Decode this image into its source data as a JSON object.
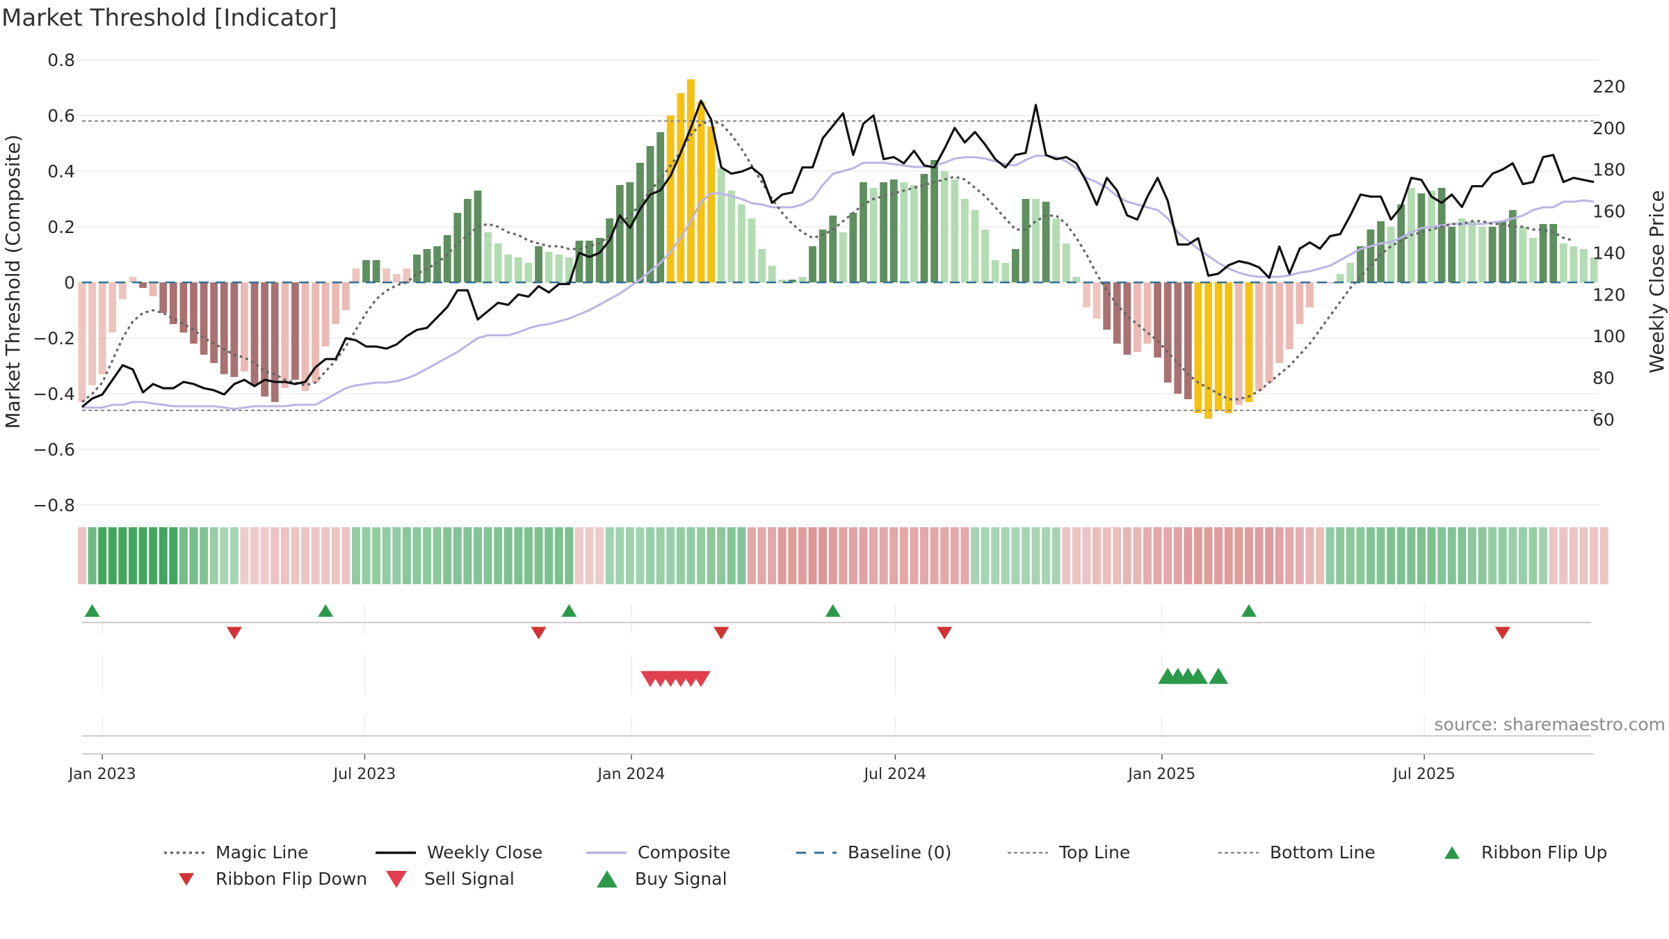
{
  "chart_data": {
    "type": "bar",
    "title": "Market Threshold [Indicator]",
    "ylabel": "Market Threshold (Composite)",
    "y2label": "Weekly Close Price",
    "ylim": [
      -0.8,
      0.8
    ],
    "y2lim": [
      56,
      222
    ],
    "yticks": [
      "0.8",
      "0.6",
      "0.4",
      "0.2",
      "0",
      "−0.2",
      "−0.4",
      "−0.6",
      "−0.8"
    ],
    "y2ticks": [
      "220",
      "200",
      "180",
      "160",
      "140",
      "120",
      "100",
      "80",
      "60"
    ],
    "x_axis": {
      "start": "2022-12-18",
      "ticks": [
        "Jan 2023",
        "Jul 2023",
        "Jan 2024",
        "Jul 2024",
        "Jan 2025",
        "Jul 2025"
      ]
    },
    "top_line": 0.58,
    "bottom_line": -0.46,
    "baseline": 0,
    "composite_bars": [
      -0.43,
      -0.37,
      -0.33,
      -0.18,
      -0.06,
      0.02,
      -0.02,
      -0.05,
      -0.11,
      -0.15,
      -0.18,
      -0.22,
      -0.26,
      -0.29,
      -0.33,
      -0.34,
      -0.32,
      -0.37,
      -0.41,
      -0.43,
      -0.38,
      -0.35,
      -0.39,
      -0.36,
      -0.23,
      -0.15,
      -0.1,
      0.05,
      0.08,
      0.08,
      0.05,
      0.03,
      0.05,
      0.1,
      0.12,
      0.13,
      0.17,
      0.25,
      0.3,
      0.33,
      0.18,
      0.14,
      0.1,
      0.09,
      0.07,
      0.13,
      0.11,
      0.1,
      0.09,
      0.15,
      0.15,
      0.16,
      0.23,
      0.35,
      0.36,
      0.43,
      0.49,
      0.54,
      0.6,
      0.68,
      0.73,
      0.65,
      0.56,
      0.41,
      0.33,
      0.28,
      0.23,
      0.12,
      0.06,
      0.01,
      0.01,
      0.02,
      0.13,
      0.19,
      0.24,
      0.18,
      0.25,
      0.36,
      0.34,
      0.36,
      0.37,
      0.36,
      0.35,
      0.39,
      0.44,
      0.4,
      0.37,
      0.3,
      0.26,
      0.19,
      0.08,
      0.07,
      0.12,
      0.3,
      0.3,
      0.29,
      0.23,
      0.14,
      0.02,
      -0.09,
      -0.13,
      -0.17,
      -0.22,
      -0.26,
      -0.25,
      -0.22,
      -0.27,
      -0.36,
      -0.4,
      -0.42,
      -0.47,
      -0.49,
      -0.46,
      -0.47,
      -0.44,
      -0.43,
      -0.39,
      -0.36,
      -0.29,
      -0.24,
      -0.15,
      -0.09,
      0.0,
      0.0,
      0.03,
      0.07,
      0.13,
      0.19,
      0.22,
      0.2,
      0.28,
      0.34,
      0.32,
      0.33,
      0.34,
      0.2,
      0.23,
      0.22,
      0.2,
      0.2,
      0.22,
      0.26,
      0.2,
      0.16,
      0.21,
      0.21,
      0.14,
      0.13,
      0.12,
      0.09
    ],
    "bar_state": [
      "lf",
      "lf",
      "lf",
      "lf",
      "lf",
      "lf",
      "dr",
      "lr",
      "dr",
      "dr",
      "dr",
      "dr",
      "dr",
      "dr",
      "dr",
      "dr",
      "lr",
      "dr",
      "dr",
      "dr",
      "lr",
      "dr",
      "lr",
      "lr",
      "lr",
      "lr",
      "lr",
      "lf",
      "dg",
      "dg",
      "lf",
      "lf",
      "lf",
      "dg",
      "dg",
      "dg",
      "dg",
      "dg",
      "dg",
      "dg",
      "lg",
      "lg",
      "lg",
      "lg",
      "lg",
      "dg",
      "lg",
      "lg",
      "lg",
      "dg",
      "dg",
      "dg",
      "dg",
      "dg",
      "dg",
      "dg",
      "dg",
      "dg",
      "y",
      "y",
      "y",
      "y",
      "y",
      "lg",
      "lg",
      "lg",
      "lg",
      "lg",
      "lg",
      "lg",
      "dg",
      "lg",
      "dg",
      "dg",
      "dg",
      "lg",
      "dg",
      "dg",
      "lg",
      "dg",
      "dg",
      "lg",
      "lg",
      "dg",
      "dg",
      "lg",
      "lg",
      "lg",
      "lg",
      "lg",
      "lg",
      "lg",
      "dg",
      "dg",
      "lg",
      "dg",
      "lg",
      "lg",
      "lg",
      "lf",
      "lf",
      "dr",
      "dr",
      "dr",
      "lr",
      "lr",
      "dr",
      "dr",
      "dr",
      "dr",
      "y",
      "y",
      "y",
      "y",
      "lr",
      "y",
      "lr",
      "lr",
      "lr",
      "lr",
      "lr",
      "lr",
      "lr",
      "lr",
      "lg",
      "lg",
      "dg",
      "dg",
      "dg",
      "lg",
      "dg",
      "lg",
      "dg",
      "lg",
      "dg",
      "dg",
      "lg",
      "lg",
      "lg",
      "dg",
      "dg",
      "dg",
      "lg",
      "lg",
      "dg",
      "dg",
      "lg",
      "lg",
      "lg",
      "lg"
    ],
    "weekly_close": [
      66,
      70,
      72,
      79,
      86,
      84,
      73,
      77,
      75,
      75,
      78,
      77,
      75,
      74,
      72,
      77,
      79,
      76,
      79,
      78,
      78,
      77,
      78,
      85,
      89,
      89,
      99,
      98,
      95,
      95,
      94,
      96,
      100,
      103,
      104,
      109,
      114,
      122,
      122,
      108,
      112,
      116,
      115,
      120,
      119,
      124,
      121,
      125,
      125,
      140,
      138,
      140,
      146,
      158,
      152,
      161,
      168,
      170,
      177,
      188,
      200,
      213,
      204,
      181,
      178,
      179,
      181,
      177,
      164,
      168,
      169,
      181,
      181,
      195,
      201,
      207,
      187,
      202,
      206,
      185,
      186,
      183,
      189,
      182,
      181,
      190,
      200,
      193,
      198,
      192,
      185,
      181,
      187,
      188,
      211,
      187,
      185,
      186,
      183,
      174,
      163,
      176,
      170,
      158,
      156,
      167,
      176,
      165,
      144,
      144,
      147,
      129,
      130,
      134,
      136,
      135,
      133,
      128,
      143,
      130,
      142,
      145,
      142,
      148,
      149,
      158,
      168,
      167,
      167,
      156,
      162,
      176,
      175,
      167,
      164,
      168,
      162,
      172,
      172,
      178,
      180,
      183,
      173,
      174,
      186,
      187,
      174,
      176,
      175,
      174
    ],
    "composite_line": [
      -0.45,
      -0.45,
      -0.45,
      -0.44,
      -0.44,
      -0.43,
      -0.43,
      -0.435,
      -0.44,
      -0.445,
      -0.445,
      -0.445,
      -0.445,
      -0.445,
      -0.45,
      -0.455,
      -0.45,
      -0.445,
      -0.445,
      -0.445,
      -0.445,
      -0.44,
      -0.44,
      -0.44,
      -0.42,
      -0.4,
      -0.38,
      -0.37,
      -0.365,
      -0.36,
      -0.36,
      -0.355,
      -0.345,
      -0.33,
      -0.31,
      -0.29,
      -0.27,
      -0.25,
      -0.225,
      -0.2,
      -0.19,
      -0.19,
      -0.19,
      -0.18,
      -0.165,
      -0.155,
      -0.15,
      -0.14,
      -0.13,
      -0.115,
      -0.1,
      -0.08,
      -0.06,
      -0.04,
      -0.015,
      0.01,
      0.04,
      0.07,
      0.11,
      0.16,
      0.22,
      0.29,
      0.32,
      0.32,
      0.31,
      0.3,
      0.285,
      0.28,
      0.27,
      0.27,
      0.27,
      0.28,
      0.3,
      0.35,
      0.39,
      0.4,
      0.41,
      0.43,
      0.43,
      0.43,
      0.425,
      0.42,
      0.415,
      0.415,
      0.42,
      0.43,
      0.445,
      0.45,
      0.45,
      0.445,
      0.435,
      0.425,
      0.42,
      0.44,
      0.455,
      0.455,
      0.45,
      0.435,
      0.41,
      0.375,
      0.36,
      0.34,
      0.31,
      0.29,
      0.28,
      0.27,
      0.26,
      0.23,
      0.18,
      0.15,
      0.12,
      0.095,
      0.07,
      0.05,
      0.035,
      0.025,
      0.02,
      0.02,
      0.02,
      0.025,
      0.035,
      0.04,
      0.05,
      0.06,
      0.08,
      0.1,
      0.12,
      0.13,
      0.14,
      0.145,
      0.16,
      0.18,
      0.195,
      0.2,
      0.205,
      0.21,
      0.21,
      0.21,
      0.21,
      0.215,
      0.22,
      0.23,
      0.24,
      0.26,
      0.27,
      0.27,
      0.29,
      0.29,
      0.295,
      0.29
    ],
    "magic_line": [
      -0.43,
      -0.4,
      -0.36,
      -0.28,
      -0.2,
      -0.14,
      -0.11,
      -0.1,
      -0.11,
      -0.13,
      -0.15,
      -0.17,
      -0.2,
      -0.22,
      -0.24,
      -0.26,
      -0.27,
      -0.29,
      -0.32,
      -0.33,
      -0.35,
      -0.36,
      -0.37,
      -0.36,
      -0.32,
      -0.28,
      -0.23,
      -0.17,
      -0.11,
      -0.06,
      -0.03,
      -0.01,
      0.0,
      0.03,
      0.05,
      0.07,
      0.1,
      0.14,
      0.17,
      0.2,
      0.21,
      0.2,
      0.18,
      0.17,
      0.15,
      0.14,
      0.13,
      0.13,
      0.12,
      0.12,
      0.13,
      0.14,
      0.17,
      0.21,
      0.24,
      0.28,
      0.33,
      0.37,
      0.42,
      0.47,
      0.53,
      0.57,
      0.58,
      0.57,
      0.53,
      0.48,
      0.42,
      0.36,
      0.3,
      0.25,
      0.21,
      0.18,
      0.16,
      0.17,
      0.19,
      0.22,
      0.25,
      0.28,
      0.3,
      0.31,
      0.32,
      0.33,
      0.34,
      0.35,
      0.36,
      0.37,
      0.38,
      0.37,
      0.34,
      0.31,
      0.27,
      0.23,
      0.19,
      0.19,
      0.22,
      0.24,
      0.24,
      0.21,
      0.16,
      0.1,
      0.03,
      -0.03,
      -0.08,
      -0.12,
      -0.15,
      -0.18,
      -0.21,
      -0.25,
      -0.29,
      -0.33,
      -0.36,
      -0.38,
      -0.4,
      -0.42,
      -0.42,
      -0.41,
      -0.39,
      -0.36,
      -0.33,
      -0.3,
      -0.26,
      -0.22,
      -0.17,
      -0.12,
      -0.07,
      -0.02,
      0.02,
      0.06,
      0.1,
      0.13,
      0.15,
      0.17,
      0.18,
      0.19,
      0.2,
      0.21,
      0.21,
      0.22,
      0.22,
      0.21,
      0.21,
      0.2,
      0.2,
      0.19,
      0.19,
      0.18,
      0.16,
      0.15
    ],
    "ribbon_strength": [
      -0.25,
      0.7,
      1,
      1,
      1,
      1,
      1,
      1,
      1,
      1,
      0.65,
      0.65,
      0.55,
      0.4,
      0.3,
      0.3,
      -0.2,
      -0.2,
      -0.2,
      -0.25,
      -0.25,
      -0.25,
      -0.25,
      -0.25,
      -0.25,
      -0.25,
      -0.25,
      0.45,
      0.45,
      0.45,
      0.45,
      0.45,
      0.5,
      0.5,
      0.5,
      0.5,
      0.55,
      0.55,
      0.55,
      0.55,
      0.55,
      0.55,
      0.6,
      0.6,
      0.6,
      0.6,
      0.6,
      0.6,
      0.6,
      -0.2,
      -0.2,
      -0.2,
      0.35,
      0.35,
      0.35,
      0.35,
      0.4,
      0.4,
      0.4,
      0.45,
      0.45,
      0.45,
      0.5,
      0.5,
      0.55,
      0.55,
      -0.45,
      -0.45,
      -0.45,
      -0.55,
      -0.55,
      -0.55,
      -0.6,
      -0.6,
      -0.55,
      -0.5,
      -0.5,
      -0.5,
      -0.45,
      -0.45,
      -0.45,
      -0.45,
      -0.45,
      -0.45,
      -0.45,
      -0.45,
      -0.45,
      -0.45,
      0.3,
      0.3,
      0.3,
      0.3,
      0.3,
      0.3,
      0.3,
      0.3,
      0.3,
      -0.25,
      -0.25,
      -0.25,
      -0.3,
      -0.3,
      -0.3,
      -0.35,
      -0.35,
      -0.4,
      -0.45,
      -0.45,
      -0.5,
      -0.55,
      -0.55,
      -0.55,
      -0.55,
      -0.55,
      -0.55,
      -0.55,
      -0.55,
      -0.55,
      -0.5,
      -0.45,
      -0.4,
      -0.35,
      -0.3,
      0.45,
      0.5,
      0.5,
      0.5,
      0.55,
      0.55,
      0.6,
      0.6,
      0.6,
      0.6,
      0.6,
      0.55,
      0.55,
      0.55,
      0.5,
      0.5,
      0.45,
      0.45,
      0.4,
      0.4,
      0.4,
      0.35,
      -0.25,
      -0.25,
      -0.25,
      -0.25,
      -0.25,
      -0.25
    ],
    "signals": {
      "ribbon_flip_up": [
        1,
        24,
        48,
        74,
        115
      ],
      "ribbon_flip_down": [
        15,
        45,
        63,
        85,
        140
      ],
      "sell_signal": [
        56,
        57,
        58,
        59,
        60,
        61
      ],
      "buy_signal": [
        107,
        108,
        109,
        110,
        112
      ]
    },
    "legend": [
      {
        "key": "magic",
        "label": "Magic Line"
      },
      {
        "key": "close",
        "label": "Weekly Close"
      },
      {
        "key": "composite",
        "label": "Composite"
      },
      {
        "key": "baseline",
        "label": "Baseline (0)"
      },
      {
        "key": "top",
        "label": "Top Line"
      },
      {
        "key": "bottom",
        "label": "Bottom Line"
      },
      {
        "key": "flipup",
        "label": "Ribbon Flip Up"
      },
      {
        "key": "flipdown",
        "label": "Ribbon Flip Down"
      },
      {
        "key": "sell",
        "label": "Sell Signal"
      },
      {
        "key": "buy",
        "label": "Buy Signal"
      }
    ],
    "source": "source: sharemaestro.com",
    "colors": {
      "dark_green": "#5f8f5f",
      "light_green": "#b3dcb3",
      "dark_red": "#a97272",
      "light_red": "#ecbab4",
      "yellow": "#f6c110",
      "weekly_close": "#111111",
      "composite": "#bcb4e4",
      "magic": "#666666",
      "baseline": "#2f6f93",
      "guide": "#888888",
      "up_marker": "#2a9a4a",
      "down_marker": "#d23232",
      "sell_marker": "#e0404f"
    }
  }
}
